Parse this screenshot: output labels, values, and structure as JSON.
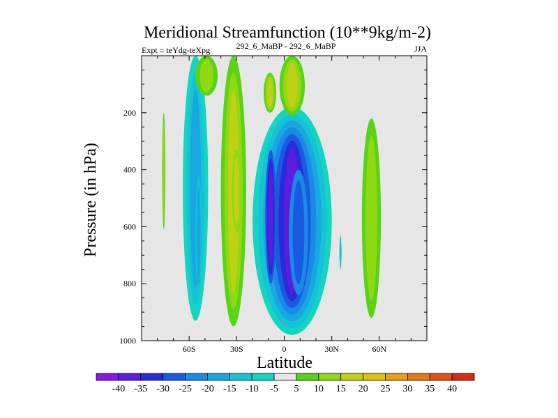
{
  "chart_data": {
    "type": "contour",
    "title": "Meridional Streamfunction (10**9kg/m-2)",
    "experiment_label": "Expt = teYdg-teXpg",
    "subtitle": "292_6_MaBP - 292_6_MaBP",
    "season": "JJA",
    "xlabel": "Latitude",
    "ylabel": "Pressure (in hPa)",
    "xlim": [
      -90,
      90
    ],
    "ylim": [
      1000,
      0
    ],
    "x_ticks": [
      {
        "value": -60,
        "label": "60S"
      },
      {
        "value": -30,
        "label": "30S"
      },
      {
        "value": 0,
        "label": "0"
      },
      {
        "value": 30,
        "label": "30N"
      },
      {
        "value": 60,
        "label": "60N"
      }
    ],
    "y_ticks": [
      {
        "value": 200,
        "label": "200"
      },
      {
        "value": 400,
        "label": "400"
      },
      {
        "value": 600,
        "label": "600"
      },
      {
        "value": 800,
        "label": "800"
      },
      {
        "value": 1000,
        "label": "1000"
      }
    ],
    "background_color": "#e6e6e6",
    "colorbar": {
      "levels": [
        "-40",
        "-35",
        "-30",
        "-25",
        "-20",
        "-15",
        "-10",
        "-5",
        "5",
        "10",
        "15",
        "20",
        "25",
        "30",
        "35",
        "40"
      ],
      "colors": [
        "#8a16e6",
        "#5a1ee0",
        "#2a2ad8",
        "#1a5ae0",
        "#1a8ae8",
        "#18a8e0",
        "#14c4d6",
        "#14d6c0",
        "#e6e6e6",
        "#58d414",
        "#8ed814",
        "#c0d014",
        "#dcc014",
        "#e6a014",
        "#e67a14",
        "#e05414",
        "#d82a10"
      ]
    },
    "regions": [
      {
        "name": "south-polar-edge-cell",
        "lat_range": [
          -77,
          -75
        ],
        "p_range": [
          200,
          610
        ],
        "value_range": [
          5,
          10
        ]
      },
      {
        "name": "southern-cell",
        "lat_range": [
          -64,
          -48
        ],
        "p_range": [
          0,
          930
        ],
        "value_range": [
          -15,
          -5
        ]
      },
      {
        "name": "southern-cell-core",
        "lat_range": [
          -56,
          -52
        ],
        "p_range": [
          420,
          840
        ],
        "value_range": [
          -15,
          -10
        ]
      },
      {
        "name": "upper-trop-cell-south",
        "lat_range": [
          -56,
          -42
        ],
        "p_range": [
          0,
          140
        ],
        "value_range": [
          5,
          10
        ]
      },
      {
        "name": "subtropical-south-cell",
        "lat_range": [
          -40,
          -24
        ],
        "p_range": [
          0,
          950
        ],
        "value_range": [
          5,
          15
        ]
      },
      {
        "name": "subtropical-south-core",
        "lat_range": [
          -33,
          -27
        ],
        "p_range": [
          330,
          620
        ],
        "value_range": [
          10,
          15
        ]
      },
      {
        "name": "tropical-negative-cell",
        "lat_range": [
          -20,
          30
        ],
        "p_range": [
          180,
          980
        ],
        "value_range": [
          -35,
          -5
        ]
      },
      {
        "name": "tropical-core-south",
        "lat_range": [
          -12,
          -5
        ],
        "p_range": [
          330,
          800
        ],
        "value_range": [
          -35,
          -25
        ]
      },
      {
        "name": "tropical-core-north",
        "lat_range": [
          3,
          15
        ],
        "p_range": [
          400,
          840
        ],
        "value_range": [
          -25,
          -20
        ]
      },
      {
        "name": "stratospheric-cell-a",
        "lat_range": [
          -13,
          -5
        ],
        "p_range": [
          60,
          200
        ],
        "value_range": [
          5,
          15
        ]
      },
      {
        "name": "stratospheric-cell-b",
        "lat_range": [
          -3,
          13
        ],
        "p_range": [
          0,
          210
        ],
        "value_range": [
          5,
          15
        ]
      },
      {
        "name": "northern-ferrel-cell",
        "lat_range": [
          49,
          61
        ],
        "p_range": [
          220,
          920
        ],
        "value_range": [
          5,
          10
        ]
      },
      {
        "name": "small-north-sliver",
        "lat_range": [
          35,
          36
        ],
        "p_range": [
          630,
          750
        ],
        "value_range": [
          -10,
          -5
        ]
      }
    ]
  }
}
